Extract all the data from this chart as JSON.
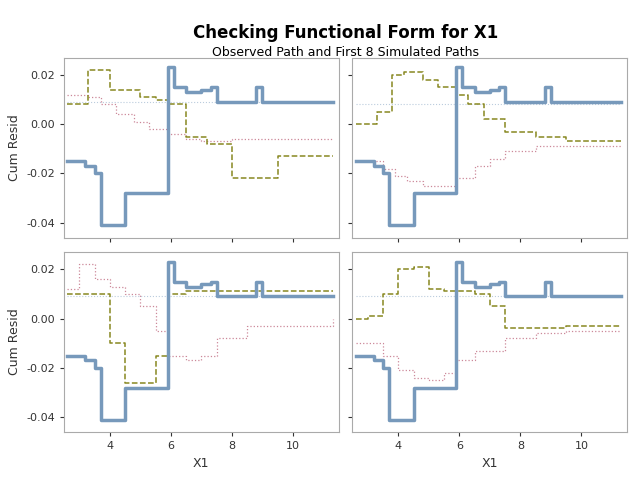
{
  "title": "Checking Functional Form for X1",
  "subtitle": "Observed Path and First 8 Simulated Paths",
  "xlabel": "X1",
  "ylabel": "Cum Resid",
  "xlim": [
    2.5,
    11.5
  ],
  "ylim": [
    -0.046,
    0.027
  ],
  "yticks": [
    -0.04,
    -0.02,
    0.0,
    0.02
  ],
  "xticks": [
    4,
    6,
    8,
    10
  ],
  "bg_color": "#ffffff",
  "panel_bg": "#ffffff",
  "obs_color": "#7799bb",
  "obs_lw": 2.5,
  "pink_color": "#cc8899",
  "pink_lw": 0.9,
  "yg_color": "#888820",
  "yg_lw": 1.1,
  "lb_color": "#bbccdd",
  "lb_lw": 0.8,
  "title_fontsize": 12,
  "subtitle_fontsize": 9,
  "tick_fontsize": 8,
  "label_fontsize": 9,
  "obs_x": [
    2.6,
    3.0,
    3.2,
    3.5,
    3.7,
    4.5,
    5.5,
    5.9,
    6.1,
    6.5,
    6.8,
    7.0,
    7.3,
    7.5,
    8.0,
    8.8,
    9.0,
    11.3
  ],
  "obs_y": [
    -0.015,
    -0.015,
    -0.017,
    -0.02,
    -0.041,
    -0.028,
    -0.028,
    0.023,
    0.015,
    0.013,
    0.013,
    0.014,
    0.015,
    0.009,
    0.009,
    0.015,
    0.009,
    0.009
  ],
  "panels": [
    {
      "pink_x": [
        2.6,
        3.0,
        3.3,
        3.7,
        4.2,
        4.8,
        5.3,
        5.9,
        6.5,
        7.0,
        7.5,
        8.0,
        9.0,
        10.0,
        11.3
      ],
      "pink_y": [
        0.012,
        0.012,
        0.011,
        0.008,
        0.004,
        0.001,
        -0.002,
        -0.004,
        -0.006,
        -0.007,
        -0.007,
        -0.006,
        -0.006,
        -0.006,
        -0.006
      ],
      "yg_x": [
        2.6,
        3.0,
        3.3,
        3.7,
        4.0,
        4.5,
        5.0,
        5.5,
        5.9,
        6.5,
        7.2,
        8.0,
        8.5,
        9.5,
        11.3
      ],
      "yg_y": [
        0.008,
        0.008,
        0.022,
        0.022,
        0.014,
        0.014,
        0.011,
        0.01,
        0.008,
        -0.005,
        -0.008,
        -0.022,
        -0.022,
        -0.013,
        -0.013
      ],
      "lb_x": [
        2.6,
        3.5,
        5.0,
        6.5,
        8.0,
        9.5,
        11.3
      ],
      "lb_y": [
        0.009,
        0.009,
        0.009,
        0.009,
        0.009,
        0.009,
        0.009
      ]
    },
    {
      "pink_x": [
        2.6,
        3.0,
        3.5,
        3.9,
        4.3,
        4.8,
        5.3,
        5.9,
        6.5,
        7.0,
        7.5,
        8.5,
        9.5,
        11.3
      ],
      "pink_y": [
        -0.015,
        -0.015,
        -0.018,
        -0.021,
        -0.023,
        -0.025,
        -0.025,
        -0.022,
        -0.017,
        -0.014,
        -0.011,
        -0.009,
        -0.009,
        -0.009
      ],
      "yg_x": [
        2.6,
        3.0,
        3.3,
        3.8,
        4.2,
        4.8,
        5.3,
        5.9,
        6.3,
        6.8,
        7.5,
        8.5,
        9.5,
        11.3
      ],
      "yg_y": [
        0.0,
        0.0,
        0.005,
        0.02,
        0.021,
        0.018,
        0.015,
        0.012,
        0.008,
        0.002,
        -0.003,
        -0.005,
        -0.007,
        -0.007
      ],
      "lb_x": [
        2.6,
        3.5,
        5.0,
        6.5,
        8.0,
        9.5,
        11.3
      ],
      "lb_y": [
        0.008,
        0.008,
        0.008,
        0.008,
        0.008,
        0.008,
        0.008
      ]
    },
    {
      "pink_x": [
        2.6,
        3.0,
        3.2,
        3.5,
        4.0,
        4.5,
        5.0,
        5.5,
        5.9,
        6.5,
        7.0,
        7.5,
        8.5,
        9.5,
        11.3
      ],
      "pink_y": [
        0.012,
        0.022,
        0.022,
        0.016,
        0.013,
        0.01,
        0.005,
        -0.005,
        -0.015,
        -0.017,
        -0.015,
        -0.008,
        -0.003,
        -0.003,
        0.0
      ],
      "yg_x": [
        2.6,
        3.0,
        3.5,
        4.0,
        4.5,
        5.0,
        5.5,
        5.9,
        6.5,
        7.0,
        7.5,
        8.5,
        9.5,
        11.3
      ],
      "yg_y": [
        0.01,
        0.01,
        0.01,
        -0.01,
        -0.026,
        -0.026,
        -0.015,
        0.01,
        0.011,
        0.011,
        0.011,
        0.011,
        0.011,
        0.011
      ],
      "lb_x": [
        2.6,
        3.5,
        5.0,
        6.5,
        8.0,
        9.5,
        11.3
      ],
      "lb_y": [
        0.009,
        0.009,
        0.009,
        0.009,
        0.009,
        0.009,
        0.009
      ]
    },
    {
      "pink_x": [
        2.6,
        3.0,
        3.5,
        4.0,
        4.5,
        5.0,
        5.5,
        5.9,
        6.5,
        7.5,
        8.5,
        9.5,
        11.3
      ],
      "pink_y": [
        -0.01,
        -0.01,
        -0.015,
        -0.021,
        -0.024,
        -0.025,
        -0.022,
        -0.017,
        -0.013,
        -0.008,
        -0.006,
        -0.005,
        -0.005
      ],
      "yg_x": [
        2.6,
        3.0,
        3.5,
        4.0,
        4.5,
        5.0,
        5.5,
        5.9,
        6.5,
        7.0,
        7.5,
        8.5,
        9.5,
        11.3
      ],
      "yg_y": [
        0.0,
        0.001,
        0.01,
        0.02,
        0.021,
        0.012,
        0.011,
        0.011,
        0.01,
        0.005,
        -0.004,
        -0.004,
        -0.003,
        -0.003
      ],
      "lb_x": [
        2.6,
        3.5,
        5.0,
        6.5,
        8.0,
        9.5,
        11.3
      ],
      "lb_y": [
        0.009,
        0.009,
        0.009,
        0.009,
        0.009,
        0.009,
        0.009
      ]
    }
  ]
}
